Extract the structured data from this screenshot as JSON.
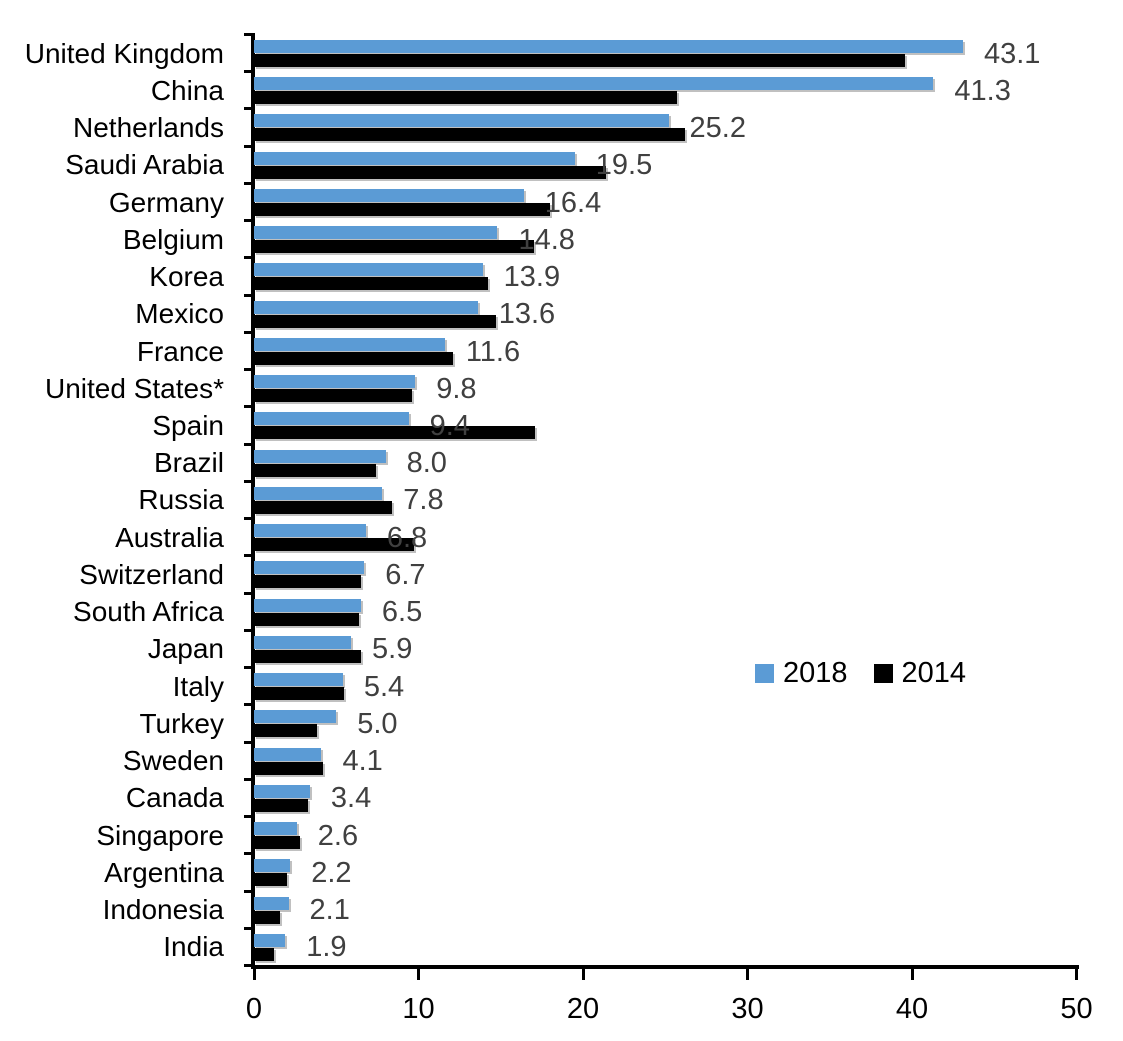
{
  "chart_data": {
    "type": "bar",
    "orientation": "horizontal",
    "title": "",
    "xlabel": "",
    "ylabel": "",
    "xlim": [
      0,
      50
    ],
    "x_ticks": [
      "0",
      "10",
      "20",
      "30",
      "40",
      "50"
    ],
    "grid": false,
    "legend_position": "middle-right",
    "categories": [
      "United Kingdom",
      "China",
      "Netherlands",
      "Saudi Arabia",
      "Germany",
      "Belgium",
      "Korea",
      "Mexico",
      "France",
      "United States*",
      "Spain",
      "Brazil",
      "Russia",
      "Australia",
      "Switzerland",
      "South Africa",
      "Japan",
      "Italy",
      "Turkey",
      "Sweden",
      "Canada",
      "Singapore",
      "Argentina",
      "Indonesia",
      "India"
    ],
    "series": [
      {
        "name": "2018",
        "color": "#5B9BD5",
        "data_labels_shown": true,
        "values": [
          43.1,
          41.3,
          25.2,
          19.5,
          16.4,
          14.8,
          13.9,
          13.6,
          11.6,
          9.8,
          9.4,
          8.0,
          7.8,
          6.8,
          6.7,
          6.5,
          5.9,
          5.4,
          5.0,
          4.1,
          3.4,
          2.6,
          2.2,
          2.1,
          1.9
        ]
      },
      {
        "name": "2014",
        "color": "#000000",
        "data_labels_shown": false,
        "values": [
          39.6,
          25.7,
          26.2,
          21.4,
          18.0,
          17.0,
          14.2,
          14.7,
          12.1,
          9.6,
          17.1,
          7.4,
          8.4,
          9.7,
          6.5,
          6.4,
          6.5,
          5.5,
          3.8,
          4.2,
          3.3,
          2.8,
          2.0,
          1.6,
          1.2
        ]
      }
    ],
    "value_label_color": "#404040",
    "axis_color": "#000000",
    "background_color": "#ffffff"
  }
}
